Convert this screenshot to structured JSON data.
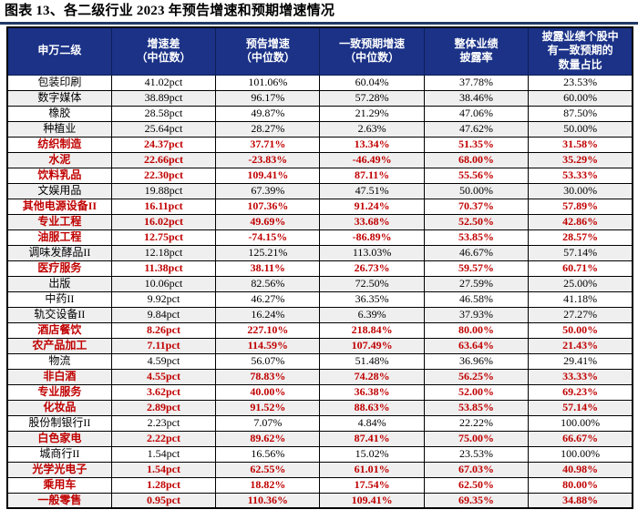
{
  "figure": {
    "title": "图表 13、各二级行业 2023 年预告增速和预期增速情况"
  },
  "colors": {
    "header_bg": "#1b3287",
    "rule": "#1f3864",
    "highlight_text": "#c00000",
    "row_alt_bg": "#efefef",
    "border": "#000000"
  },
  "table": {
    "columns": [
      "申万二级",
      "增速差\n（中位数）",
      "预告增速\n（中位数）",
      "一致预期增速\n（中位数）",
      "整体业绩\n披露率",
      "披露业绩个股中\n有一致预期的\n数量占比"
    ],
    "rows": [
      {
        "name": "包装印刷",
        "gap": "41.02pct",
        "forecast": "101.06%",
        "consensus": "60.04%",
        "disclosure": "37.78%",
        "coverage": "23.53%",
        "highlight": false
      },
      {
        "name": "数字媒体",
        "gap": "38.89pct",
        "forecast": "96.17%",
        "consensus": "57.28%",
        "disclosure": "38.46%",
        "coverage": "60.00%",
        "highlight": false
      },
      {
        "name": "橡胶",
        "gap": "28.58pct",
        "forecast": "49.87%",
        "consensus": "21.29%",
        "disclosure": "47.06%",
        "coverage": "87.50%",
        "highlight": false
      },
      {
        "name": "种植业",
        "gap": "25.64pct",
        "forecast": "28.27%",
        "consensus": "2.63%",
        "disclosure": "47.62%",
        "coverage": "50.00%",
        "highlight": false
      },
      {
        "name": "纺织制造",
        "gap": "24.37pct",
        "forecast": "37.71%",
        "consensus": "13.34%",
        "disclosure": "51.35%",
        "coverage": "31.58%",
        "highlight": true
      },
      {
        "name": "水泥",
        "gap": "22.66pct",
        "forecast": "-23.83%",
        "consensus": "-46.49%",
        "disclosure": "68.00%",
        "coverage": "35.29%",
        "highlight": true
      },
      {
        "name": "饮料乳品",
        "gap": "22.30pct",
        "forecast": "109.41%",
        "consensus": "87.11%",
        "disclosure": "55.56%",
        "coverage": "53.33%",
        "highlight": true
      },
      {
        "name": "文娱用品",
        "gap": "19.88pct",
        "forecast": "67.39%",
        "consensus": "47.51%",
        "disclosure": "50.00%",
        "coverage": "30.00%",
        "highlight": false
      },
      {
        "name": "其他电源设备II",
        "gap": "16.11pct",
        "forecast": "107.36%",
        "consensus": "91.24%",
        "disclosure": "70.37%",
        "coverage": "57.89%",
        "highlight": true
      },
      {
        "name": "专业工程",
        "gap": "16.02pct",
        "forecast": "49.69%",
        "consensus": "33.68%",
        "disclosure": "52.50%",
        "coverage": "42.86%",
        "highlight": true
      },
      {
        "name": "油服工程",
        "gap": "12.75pct",
        "forecast": "-74.15%",
        "consensus": "-86.89%",
        "disclosure": "53.85%",
        "coverage": "28.57%",
        "highlight": true
      },
      {
        "name": "调味发酵品II",
        "gap": "12.18pct",
        "forecast": "125.21%",
        "consensus": "113.03%",
        "disclosure": "46.67%",
        "coverage": "57.14%",
        "highlight": false
      },
      {
        "name": "医疗服务",
        "gap": "11.38pct",
        "forecast": "38.11%",
        "consensus": "26.73%",
        "disclosure": "59.57%",
        "coverage": "60.71%",
        "highlight": true
      },
      {
        "name": "出版",
        "gap": "10.06pct",
        "forecast": "82.56%",
        "consensus": "72.50%",
        "disclosure": "27.59%",
        "coverage": "25.00%",
        "highlight": false
      },
      {
        "name": "中药II",
        "gap": "9.92pct",
        "forecast": "46.27%",
        "consensus": "36.35%",
        "disclosure": "46.58%",
        "coverage": "41.18%",
        "highlight": false
      },
      {
        "name": "轨交设备II",
        "gap": "9.84pct",
        "forecast": "16.24%",
        "consensus": "6.39%",
        "disclosure": "37.93%",
        "coverage": "27.27%",
        "highlight": false
      },
      {
        "name": "酒店餐饮",
        "gap": "8.26pct",
        "forecast": "227.10%",
        "consensus": "218.84%",
        "disclosure": "80.00%",
        "coverage": "50.00%",
        "highlight": true
      },
      {
        "name": "农产品加工",
        "gap": "7.11pct",
        "forecast": "114.59%",
        "consensus": "107.49%",
        "disclosure": "63.64%",
        "coverage": "21.43%",
        "highlight": true
      },
      {
        "name": "物流",
        "gap": "4.59pct",
        "forecast": "56.07%",
        "consensus": "51.48%",
        "disclosure": "36.96%",
        "coverage": "29.41%",
        "highlight": false
      },
      {
        "name": "非白酒",
        "gap": "4.55pct",
        "forecast": "78.83%",
        "consensus": "74.28%",
        "disclosure": "56.25%",
        "coverage": "33.33%",
        "highlight": true
      },
      {
        "name": "专业服务",
        "gap": "3.62pct",
        "forecast": "40.00%",
        "consensus": "36.38%",
        "disclosure": "52.00%",
        "coverage": "69.23%",
        "highlight": true
      },
      {
        "name": "化妆品",
        "gap": "2.89pct",
        "forecast": "91.52%",
        "consensus": "88.63%",
        "disclosure": "53.85%",
        "coverage": "57.14%",
        "highlight": true
      },
      {
        "name": "股份制银行II",
        "gap": "2.23pct",
        "forecast": "7.07%",
        "consensus": "4.84%",
        "disclosure": "22.22%",
        "coverage": "100.00%",
        "highlight": false
      },
      {
        "name": "白色家电",
        "gap": "2.22pct",
        "forecast": "89.62%",
        "consensus": "87.41%",
        "disclosure": "75.00%",
        "coverage": "66.67%",
        "highlight": true
      },
      {
        "name": "城商行II",
        "gap": "1.54pct",
        "forecast": "16.56%",
        "consensus": "15.02%",
        "disclosure": "23.53%",
        "coverage": "100.00%",
        "highlight": false
      },
      {
        "name": "光学光电子",
        "gap": "1.54pct",
        "forecast": "62.55%",
        "consensus": "61.01%",
        "disclosure": "67.03%",
        "coverage": "40.98%",
        "highlight": true
      },
      {
        "name": "乘用车",
        "gap": "1.28pct",
        "forecast": "18.82%",
        "consensus": "17.54%",
        "disclosure": "62.50%",
        "coverage": "80.00%",
        "highlight": true
      },
      {
        "name": "一般零售",
        "gap": "0.95pct",
        "forecast": "110.36%",
        "consensus": "109.41%",
        "disclosure": "69.35%",
        "coverage": "34.88%",
        "highlight": true
      }
    ]
  }
}
